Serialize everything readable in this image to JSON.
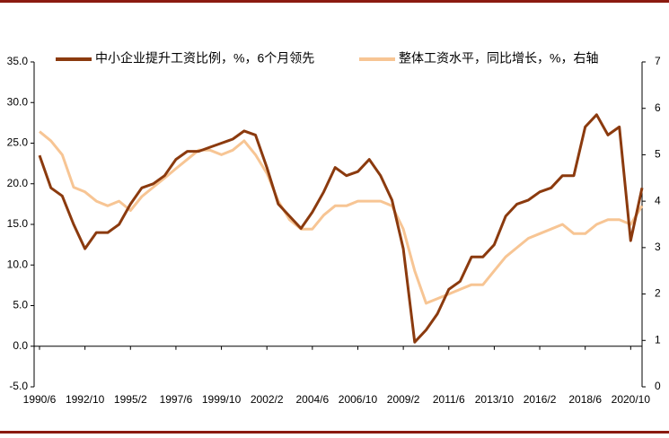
{
  "chart_data": {
    "type": "line",
    "categories": [
      "1990/6",
      null,
      null,
      null,
      "1992/10",
      null,
      null,
      null,
      "1995/2",
      null,
      null,
      null,
      "1997/6",
      null,
      null,
      null,
      "1999/10",
      null,
      null,
      null,
      "2002/2",
      null,
      null,
      null,
      "2004/6",
      null,
      null,
      null,
      "2006/10",
      null,
      null,
      null,
      "2009/2",
      null,
      null,
      null,
      "2011/6",
      null,
      null,
      null,
      "2013/10",
      null,
      null,
      null,
      "2016/2",
      null,
      null,
      null,
      "2018/6",
      null,
      null,
      null,
      "2020/10",
      null
    ],
    "series": [
      {
        "name": "中小企业提升工资比例，%，6个月领先",
        "color": "#8b3a0e",
        "values": [
          23.5,
          19.5,
          18.5,
          15,
          12,
          14,
          14,
          15,
          17.5,
          19.5,
          20,
          21,
          23,
          24,
          24,
          24.5,
          25,
          25.5,
          26.5,
          26,
          22,
          17.5,
          16,
          14.5,
          16.5,
          19,
          22,
          21,
          21.5,
          23,
          21,
          18,
          12,
          0.5,
          2,
          4,
          7,
          8,
          11,
          11,
          12.5,
          16,
          17.5,
          18,
          19,
          19.5,
          21,
          21,
          27,
          28.5,
          26,
          27,
          13,
          19.5
        ]
      },
      {
        "name": "整体工资水平，同比增长，%，右轴",
        "color": "#f7c594",
        "axis": "y2",
        "values": [
          5.5,
          5.3,
          5.0,
          4.3,
          4.2,
          4.0,
          3.9,
          4.0,
          3.8,
          4.1,
          4.3,
          4.5,
          4.7,
          4.9,
          5.1,
          5.1,
          5.0,
          5.1,
          5.3,
          5.0,
          4.6,
          4.0,
          3.6,
          3.4,
          3.4,
          3.7,
          3.9,
          3.9,
          4.0,
          4.0,
          4.0,
          3.9,
          3.4,
          2.5,
          1.8,
          1.9,
          2.0,
          2.1,
          2.2,
          2.2,
          2.5,
          2.8,
          3.0,
          3.2,
          3.3,
          3.4,
          3.5,
          3.3,
          3.3,
          3.5,
          3.6,
          3.6,
          3.5,
          3.9
        ]
      }
    ],
    "ylim": [
      -5,
      35
    ],
    "yticks": [
      {
        "value": -5,
        "label": "-5.0"
      },
      {
        "value": 0,
        "label": "0.0"
      },
      {
        "value": 5,
        "label": "5.0"
      },
      {
        "value": 10,
        "label": "10.0"
      },
      {
        "value": 15,
        "label": "15.0"
      },
      {
        "value": 20,
        "label": "20.0"
      },
      {
        "value": 25,
        "label": "25.0"
      },
      {
        "value": 30,
        "label": "30.0"
      },
      {
        "value": 35,
        "label": "35.0"
      }
    ],
    "y2lim": [
      0,
      7
    ],
    "y2ticks": [
      0,
      1,
      2,
      3,
      4,
      5,
      6,
      7
    ],
    "grid": false
  }
}
